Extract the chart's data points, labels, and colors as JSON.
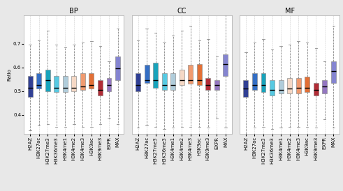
{
  "panels": [
    "BP",
    "CC",
    "MF"
  ],
  "categories": [
    "H2AZ",
    "H3K27ac",
    "H3K27me3",
    "H3K36me3",
    "H3K4me1",
    "H3K4me2",
    "H3K4me3",
    "H3K9ac",
    "H3K9me3",
    "EXPR",
    "MAX"
  ],
  "colors": [
    "#1a2b8a",
    "#1e5fbf",
    "#009ab5",
    "#45c5e0",
    "#a8c8d8",
    "#f5d5c0",
    "#f09060",
    "#e06020",
    "#aa1520",
    "#8868bb",
    "#7878cc"
  ],
  "bp": {
    "whislo": [
      0.335,
      0.355,
      0.36,
      0.35,
      0.35,
      0.36,
      0.35,
      0.35,
      0.36,
      0.385,
      0.36
    ],
    "q1": [
      0.475,
      0.51,
      0.5,
      0.495,
      0.495,
      0.5,
      0.505,
      0.51,
      0.48,
      0.5,
      0.545
    ],
    "med": [
      0.515,
      0.525,
      0.545,
      0.515,
      0.515,
      0.515,
      0.52,
      0.525,
      0.505,
      0.525,
      0.595
    ],
    "q3": [
      0.565,
      0.575,
      0.59,
      0.565,
      0.565,
      0.565,
      0.575,
      0.575,
      0.545,
      0.555,
      0.645
    ],
    "whishi": [
      0.695,
      0.715,
      0.755,
      0.695,
      0.685,
      0.695,
      0.705,
      0.71,
      0.69,
      0.625,
      0.765
    ]
  },
  "cc": {
    "whislo": [
      0.345,
      0.355,
      0.35,
      0.34,
      0.345,
      0.35,
      0.35,
      0.35,
      0.345,
      0.385,
      0.345
    ],
    "q1": [
      0.5,
      0.535,
      0.515,
      0.505,
      0.505,
      0.525,
      0.53,
      0.525,
      0.505,
      0.505,
      0.565
    ],
    "med": [
      0.525,
      0.545,
      0.545,
      0.525,
      0.525,
      0.545,
      0.545,
      0.545,
      0.525,
      0.525,
      0.615
    ],
    "q3": [
      0.575,
      0.61,
      0.62,
      0.575,
      0.575,
      0.59,
      0.61,
      0.615,
      0.555,
      0.545,
      0.655
    ],
    "whishi": [
      0.715,
      0.765,
      0.745,
      0.705,
      0.735,
      0.755,
      0.775,
      0.715,
      0.72,
      0.645,
      0.825
    ]
  },
  "mf": {
    "whislo": [
      0.315,
      0.345,
      0.35,
      0.34,
      0.345,
      0.35,
      0.35,
      0.35,
      0.345,
      0.38,
      0.345
    ],
    "q1": [
      0.475,
      0.505,
      0.495,
      0.48,
      0.49,
      0.49,
      0.49,
      0.495,
      0.48,
      0.49,
      0.535
    ],
    "med": [
      0.51,
      0.525,
      0.525,
      0.505,
      0.505,
      0.51,
      0.515,
      0.515,
      0.505,
      0.52,
      0.585
    ],
    "q3": [
      0.545,
      0.575,
      0.575,
      0.545,
      0.545,
      0.555,
      0.555,
      0.56,
      0.535,
      0.545,
      0.625
    ],
    "whishi": [
      0.665,
      0.705,
      0.72,
      0.675,
      0.69,
      0.695,
      0.71,
      0.705,
      0.68,
      0.625,
      0.775
    ]
  },
  "ylim": [
    0.32,
    0.82
  ],
  "yticks": [
    0.4,
    0.5,
    0.6,
    0.7
  ],
  "ytick_labels": [
    "0.4",
    "0.5",
    "0.6",
    "0.7"
  ],
  "background_color": "#e8e8e8",
  "panel_bg": "#ffffff",
  "title_fontsize": 7,
  "tick_fontsize": 5,
  "ylabel_fontsize": 5
}
